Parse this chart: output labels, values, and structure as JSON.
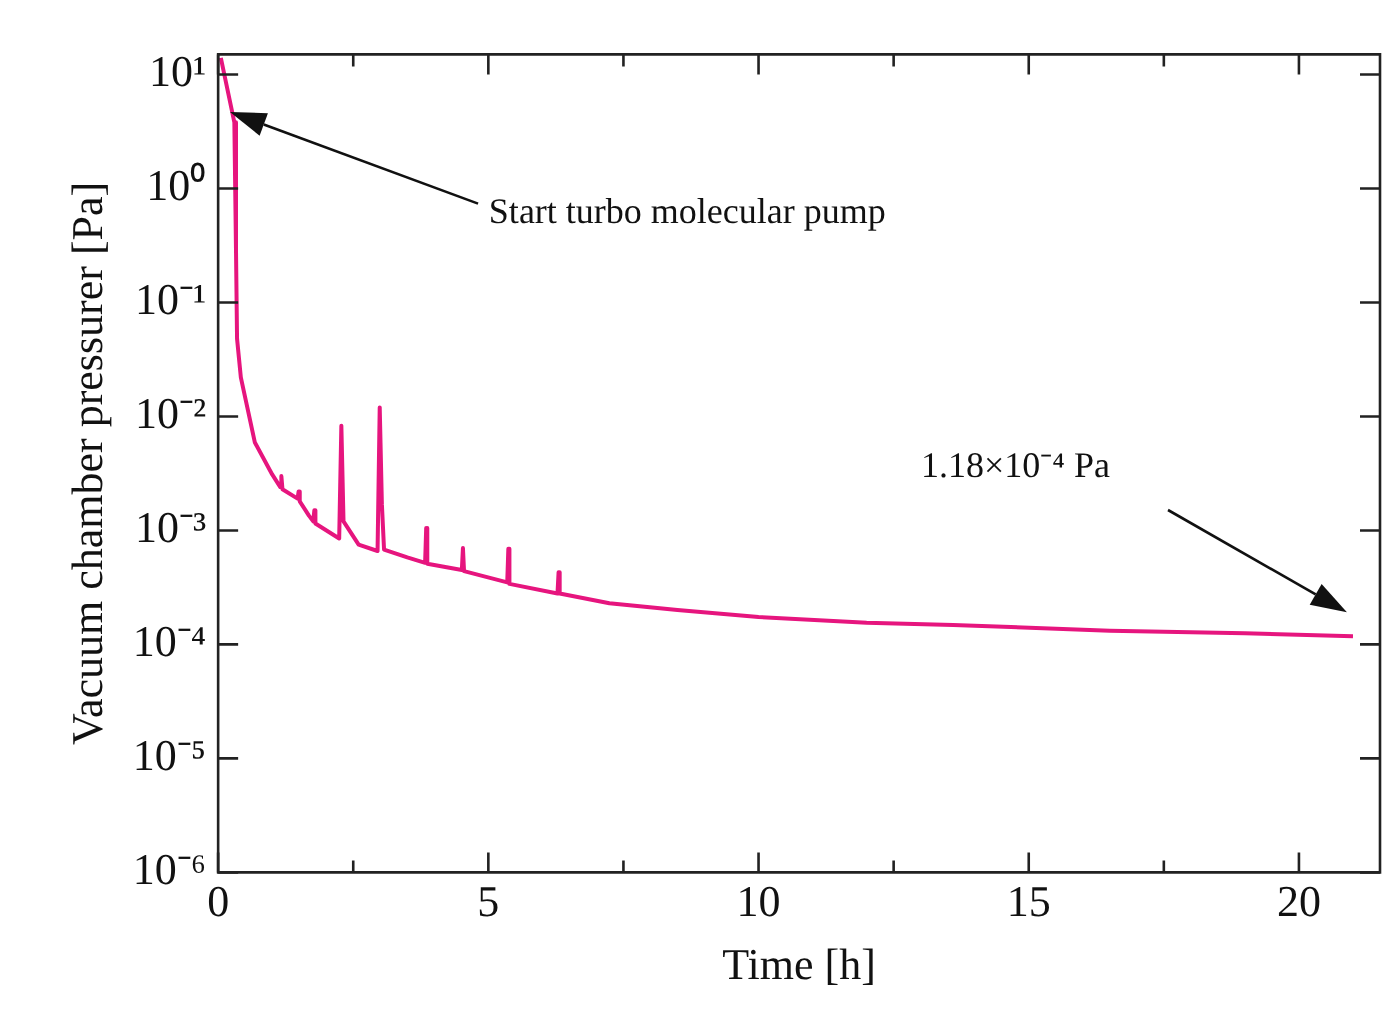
{
  "chart_data": {
    "type": "line",
    "xlabel": "Time [h]",
    "ylabel": "Vacuum chamber pressurer [Pa]",
    "xlim": [
      0,
      21.5
    ],
    "xticks": [
      0,
      {
        "value": 2.5,
        "label": null
      },
      5,
      {
        "value": 7.5,
        "label": null
      },
      10,
      {
        "value": 12.5,
        "label": null
      },
      15,
      {
        "value": 17.5,
        "label": null
      },
      20
    ],
    "ylim": [
      1e-06,
      15
    ],
    "log": "y",
    "yticks": [
      {
        "value": 10,
        "label": "10¹"
      },
      {
        "value": 1,
        "label": "10⁰"
      },
      {
        "value": 0.1,
        "label": "10⁻¹"
      },
      {
        "value": 0.01,
        "label": "10⁻²"
      },
      {
        "value": 0.001,
        "label": "10⁻³"
      },
      {
        "value": 0.0001,
        "label": "10⁻⁴"
      },
      {
        "value": 1e-05,
        "label": "10⁻⁵"
      },
      {
        "value": 1e-06,
        "label": "10⁻⁶"
      }
    ],
    "grid": false,
    "legend": false,
    "marker": "none",
    "line_style": "solid",
    "series": [
      {
        "color": "#e6157e",
        "x": [
          0.05,
          0.3,
          0.33,
          0.35,
          0.42,
          0.68,
          1.0,
          1.15,
          1.17,
          1.19,
          1.47,
          1.49,
          1.51,
          1.68,
          1.76,
          1.78,
          1.8,
          2.24,
          2.28,
          2.32,
          2.6,
          2.95,
          2.99,
          3.03,
          3.07,
          3.5,
          3.83,
          3.85,
          3.87,
          4.51,
          4.53,
          4.55,
          5.35,
          5.37,
          5.39,
          6.28,
          6.3,
          6.32,
          7.24,
          8.5,
          10,
          12,
          13.6,
          16.5,
          19,
          21
        ],
        "values": [
          14,
          3.8,
          0.3,
          0.048,
          0.022,
          0.0059,
          0.0031,
          0.0024,
          0.003,
          0.0023,
          0.0019,
          0.0022,
          0.0018,
          0.00135,
          0.0012,
          0.0015,
          0.00115,
          0.00085,
          0.0083,
          0.0012,
          0.00075,
          0.00066,
          0.012,
          0.0017,
          0.00068,
          0.00058,
          0.00052,
          0.00105,
          0.00051,
          0.00045,
          0.0007,
          0.00044,
          0.00035,
          0.00069,
          0.00034,
          0.00028,
          0.00043,
          0.00028,
          0.00023,
          0.0002,
          0.000174,
          0.000155,
          0.000148,
          0.000132,
          0.000125,
          0.000118
        ]
      }
    ],
    "annotations": [
      "Start turbo molecular pump",
      "1.18×10⁻⁴ Pa"
    ]
  }
}
